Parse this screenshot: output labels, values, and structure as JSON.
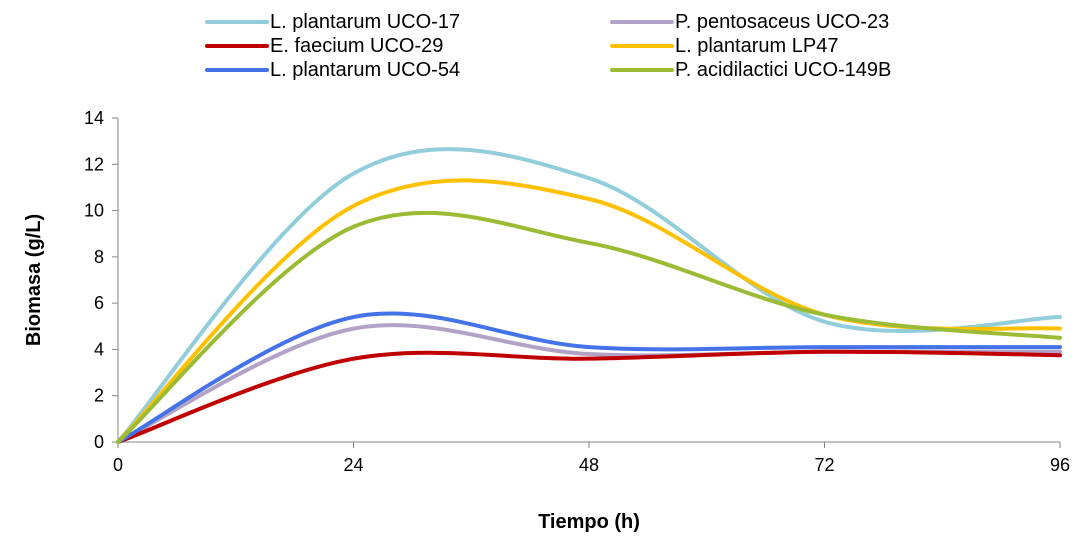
{
  "chart_data": {
    "type": "line",
    "title": "",
    "xlabel": "Tiempo (h)",
    "ylabel": "Biomasa (g/L)",
    "xlim": [
      0,
      96
    ],
    "ylim": [
      0,
      14
    ],
    "xticks": [
      0,
      24,
      48,
      72,
      96
    ],
    "yticks": [
      0,
      2,
      4,
      6,
      8,
      10,
      12,
      14
    ],
    "grid": false,
    "legend_position": "top",
    "series": [
      {
        "name": "L. plantarum UCO-17",
        "color": "#92CDDC",
        "x": [
          0,
          24,
          48,
          72,
          96
        ],
        "y": [
          0,
          11.6,
          11.4,
          5.2,
          5.4
        ]
      },
      {
        "name": "P. pentosaceus UCO-23",
        "color": "#B3A2C7",
        "x": [
          0,
          24,
          48,
          72,
          96
        ],
        "y": [
          0,
          4.9,
          3.8,
          3.9,
          3.9
        ]
      },
      {
        "name": "E. faecium UCO-29",
        "color": "#C00000",
        "x": [
          0,
          24,
          48,
          72,
          96
        ],
        "y": [
          0,
          3.6,
          3.6,
          3.9,
          3.75
        ]
      },
      {
        "name": "L. plantarum LP47",
        "color": "#FFC000",
        "x": [
          0,
          24,
          48,
          72,
          96
        ],
        "y": [
          0,
          10.2,
          10.5,
          5.5,
          4.9
        ]
      },
      {
        "name": "L. plantarum UCO-54",
        "color": "#4472E8",
        "x": [
          0,
          24,
          48,
          72,
          96
        ],
        "y": [
          0,
          5.4,
          4.1,
          4.1,
          4.1
        ]
      },
      {
        "name": "P. acidilactici UCO-149B",
        "color": "#9BBB35",
        "x": [
          0,
          24,
          48,
          72,
          96
        ],
        "y": [
          0,
          9.3,
          8.6,
          5.5,
          4.5
        ]
      }
    ]
  }
}
